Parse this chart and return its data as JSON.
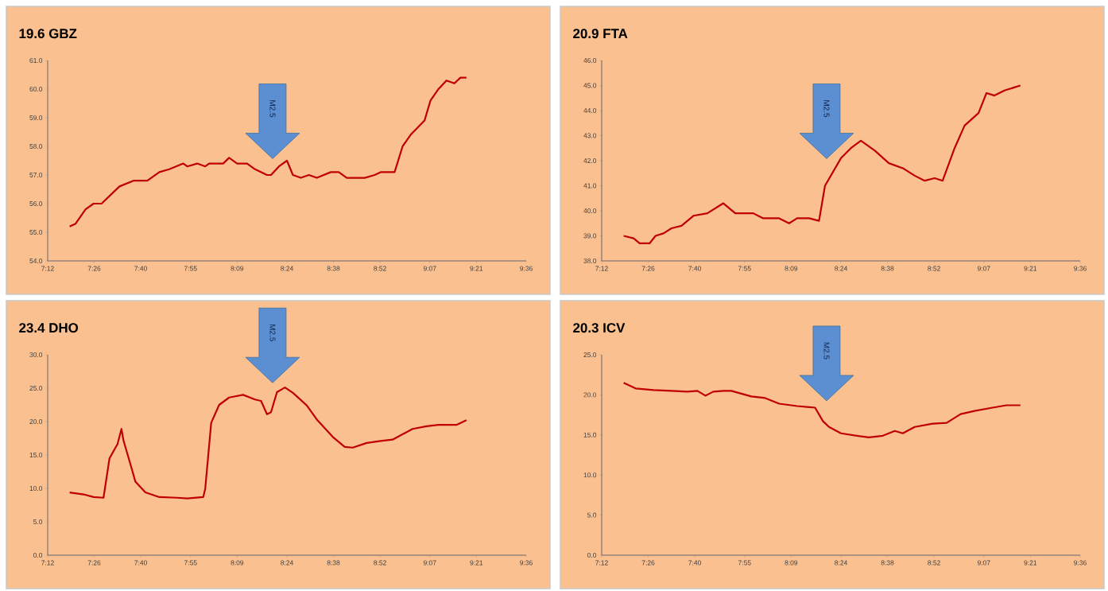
{
  "chart_data": [
    {
      "type": "line",
      "title": "19.6 GBZ",
      "xlim": [
        7.2,
        9.6
      ],
      "xticks": [
        {
          "value": 7.2,
          "label": "7:12"
        },
        {
          "value": 7.4333,
          "label": "7:26"
        },
        {
          "value": 7.6667,
          "label": "7:40"
        },
        {
          "value": 7.9167,
          "label": "7:55"
        },
        {
          "value": 8.15,
          "label": "8:09"
        },
        {
          "value": 8.4,
          "label": "8:24"
        },
        {
          "value": 8.6333,
          "label": "8:38"
        },
        {
          "value": 8.8667,
          "label": "8:52"
        },
        {
          "value": 9.1167,
          "label": "9:07"
        },
        {
          "value": 9.35,
          "label": "9:21"
        },
        {
          "value": 9.6,
          "label": "9:36"
        }
      ],
      "ylim": [
        54,
        61
      ],
      "yticks": [
        {
          "value": 54,
          "label": "54.0"
        },
        {
          "value": 55,
          "label": "55.0"
        },
        {
          "value": 56,
          "label": "56.0"
        },
        {
          "value": 57,
          "label": "57.0"
        },
        {
          "value": 58,
          "label": "58.0"
        },
        {
          "value": 59,
          "label": "59.0"
        },
        {
          "value": 60,
          "label": "60.0"
        },
        {
          "value": 61,
          "label": "61.0"
        }
      ],
      "annotations": [
        "M2.5"
      ],
      "series": [
        {
          "color": "#c00000",
          "x": [
            7.31,
            7.34,
            7.39,
            7.43,
            7.47,
            7.56,
            7.63,
            7.7,
            7.76,
            7.81,
            7.88,
            7.9,
            7.95,
            7.99,
            8.01,
            8.08,
            8.11,
            8.15,
            8.2,
            8.24,
            8.3,
            8.32,
            8.36,
            8.4,
            8.43,
            8.47,
            8.51,
            8.55,
            8.62,
            8.66,
            8.7,
            8.79,
            8.84,
            8.87,
            8.94,
            8.98,
            9.02,
            9.09,
            9.12,
            9.16,
            9.2,
            9.24,
            9.27,
            9.3
          ],
          "values": [
            55.2,
            55.3,
            55.8,
            56.0,
            56.0,
            56.6,
            56.8,
            56.8,
            57.1,
            57.2,
            57.4,
            57.3,
            57.4,
            57.3,
            57.4,
            57.4,
            57.6,
            57.4,
            57.4,
            57.2,
            57.0,
            57.0,
            57.3,
            57.5,
            57.0,
            56.9,
            57.0,
            56.9,
            57.1,
            57.1,
            56.9,
            56.9,
            57.0,
            57.1,
            57.1,
            58.0,
            58.4,
            58.9,
            59.6,
            60.0,
            60.3,
            60.2,
            60.4,
            60.4
          ]
        }
      ]
    },
    {
      "type": "line",
      "title": "20.9 FTA",
      "xlim": [
        7.2,
        9.6
      ],
      "xticks": [
        {
          "value": 7.2,
          "label": "7:12"
        },
        {
          "value": 7.4333,
          "label": "7:26"
        },
        {
          "value": 7.6667,
          "label": "7:40"
        },
        {
          "value": 7.9167,
          "label": "7:55"
        },
        {
          "value": 8.15,
          "label": "8:09"
        },
        {
          "value": 8.4,
          "label": "8:24"
        },
        {
          "value": 8.6333,
          "label": "8:38"
        },
        {
          "value": 8.8667,
          "label": "8:52"
        },
        {
          "value": 9.1167,
          "label": "9:07"
        },
        {
          "value": 9.35,
          "label": "9:21"
        },
        {
          "value": 9.6,
          "label": "9:36"
        }
      ],
      "ylim": [
        38,
        46
      ],
      "yticks": [
        {
          "value": 38,
          "label": "38.0"
        },
        {
          "value": 39,
          "label": "39.0"
        },
        {
          "value": 40,
          "label": "40.0"
        },
        {
          "value": 41,
          "label": "41.0"
        },
        {
          "value": 42,
          "label": "42.0"
        },
        {
          "value": 43,
          "label": "43.0"
        },
        {
          "value": 44,
          "label": "44.0"
        },
        {
          "value": 45,
          "label": "45.0"
        },
        {
          "value": 46,
          "label": "46.0"
        }
      ],
      "annotations": [
        "M2.5"
      ],
      "series": [
        {
          "color": "#c00000",
          "x": [
            7.31,
            7.36,
            7.39,
            7.44,
            7.47,
            7.51,
            7.55,
            7.6,
            7.66,
            7.73,
            7.81,
            7.87,
            7.96,
            8.01,
            8.09,
            8.14,
            8.18,
            8.24,
            8.29,
            8.32,
            8.4,
            8.45,
            8.5,
            8.57,
            8.64,
            8.71,
            8.77,
            8.82,
            8.87,
            8.91,
            8.97,
            9.02,
            9.09,
            9.13,
            9.17,
            9.22,
            9.26,
            9.3
          ],
          "values": [
            39.0,
            38.9,
            38.7,
            38.7,
            39.0,
            39.1,
            39.3,
            39.4,
            39.8,
            39.9,
            40.3,
            39.9,
            39.9,
            39.7,
            39.7,
            39.5,
            39.7,
            39.7,
            39.6,
            41.0,
            42.1,
            42.5,
            42.8,
            42.4,
            41.9,
            41.7,
            41.4,
            41.2,
            41.3,
            41.2,
            42.5,
            43.4,
            43.9,
            44.7,
            44.6,
            44.8,
            44.9,
            45.0
          ]
        }
      ]
    },
    {
      "type": "line",
      "title": "23.4 DHO",
      "xlim": [
        7.2,
        9.6
      ],
      "xticks": [
        {
          "value": 7.2,
          "label": "7:12"
        },
        {
          "value": 7.4333,
          "label": "7:26"
        },
        {
          "value": 7.6667,
          "label": "7:40"
        },
        {
          "value": 7.9167,
          "label": "7:55"
        },
        {
          "value": 8.15,
          "label": "8:09"
        },
        {
          "value": 8.4,
          "label": "8:24"
        },
        {
          "value": 8.6333,
          "label": "8:38"
        },
        {
          "value": 8.8667,
          "label": "8:52"
        },
        {
          "value": 9.1167,
          "label": "9:07"
        },
        {
          "value": 9.35,
          "label": "9:21"
        },
        {
          "value": 9.6,
          "label": "9:36"
        }
      ],
      "ylim": [
        0,
        30
      ],
      "yticks": [
        {
          "value": 0,
          "label": "0.0"
        },
        {
          "value": 5,
          "label": "5.0"
        },
        {
          "value": 10,
          "label": "10.0"
        },
        {
          "value": 15,
          "label": "15.0"
        },
        {
          "value": 20,
          "label": "20.0"
        },
        {
          "value": 25,
          "label": "25.0"
        },
        {
          "value": 30,
          "label": "30.0"
        }
      ],
      "annotations": [
        "M2.5"
      ],
      "series": [
        {
          "color": "#c00000",
          "x": [
            7.31,
            7.38,
            7.43,
            7.48,
            7.51,
            7.54,
            7.55,
            7.57,
            7.58,
            7.62,
            7.64,
            7.69,
            7.76,
            7.85,
            7.9,
            7.98,
            7.99,
            8.02,
            8.06,
            8.11,
            8.18,
            8.24,
            8.27,
            8.3,
            8.32,
            8.35,
            8.39,
            8.43,
            8.5,
            8.55,
            8.63,
            8.69,
            8.73,
            8.8,
            8.87,
            8.93,
            9.03,
            9.1,
            9.16,
            9.25,
            9.3
          ],
          "values": [
            9.4,
            9.1,
            8.7,
            8.6,
            14.5,
            16.1,
            16.6,
            18.9,
            17.2,
            13.1,
            11.0,
            9.4,
            8.7,
            8.6,
            8.5,
            8.7,
            9.9,
            19.8,
            22.5,
            23.6,
            24.0,
            23.3,
            23.1,
            21.1,
            21.4,
            24.4,
            25.1,
            24.3,
            22.4,
            20.3,
            17.7,
            16.2,
            16.1,
            16.8,
            17.1,
            17.3,
            18.9,
            19.3,
            19.5,
            19.5,
            20.2
          ]
        }
      ]
    },
    {
      "type": "line",
      "title": "20.3 ICV",
      "xlim": [
        7.2,
        9.6
      ],
      "xticks": [
        {
          "value": 7.2,
          "label": "7:12"
        },
        {
          "value": 7.4333,
          "label": "7:26"
        },
        {
          "value": 7.6667,
          "label": "7:40"
        },
        {
          "value": 7.9167,
          "label": "7:55"
        },
        {
          "value": 8.15,
          "label": "8:09"
        },
        {
          "value": 8.4,
          "label": "8:24"
        },
        {
          "value": 8.6333,
          "label": "8:38"
        },
        {
          "value": 8.8667,
          "label": "8:52"
        },
        {
          "value": 9.1167,
          "label": "9:07"
        },
        {
          "value": 9.35,
          "label": "9:21"
        },
        {
          "value": 9.6,
          "label": "9:36"
        }
      ],
      "ylim": [
        0,
        25
      ],
      "yticks": [
        {
          "value": 0,
          "label": "0.0"
        },
        {
          "value": 5,
          "label": "5.0"
        },
        {
          "value": 10,
          "label": "10.0"
        },
        {
          "value": 15,
          "label": "15.0"
        },
        {
          "value": 20,
          "label": "20.0"
        },
        {
          "value": 25,
          "label": "25.0"
        }
      ],
      "annotations": [
        "M2.5"
      ],
      "series": [
        {
          "color": "#c00000",
          "x": [
            7.31,
            7.37,
            7.46,
            7.55,
            7.63,
            7.68,
            7.72,
            7.76,
            7.81,
            7.85,
            7.95,
            8.02,
            8.09,
            8.18,
            8.27,
            8.31,
            8.34,
            8.4,
            8.48,
            8.54,
            8.61,
            8.67,
            8.71,
            8.77,
            8.86,
            8.93,
            9.0,
            9.07,
            9.16,
            9.23,
            9.3
          ],
          "values": [
            21.5,
            20.8,
            20.6,
            20.5,
            20.4,
            20.5,
            19.9,
            20.4,
            20.5,
            20.5,
            19.8,
            19.6,
            18.9,
            18.6,
            18.4,
            16.7,
            16.0,
            15.2,
            14.9,
            14.7,
            14.9,
            15.5,
            15.2,
            16.0,
            16.4,
            16.5,
            17.6,
            18.0,
            18.4,
            18.7,
            18.7
          ]
        }
      ]
    }
  ]
}
